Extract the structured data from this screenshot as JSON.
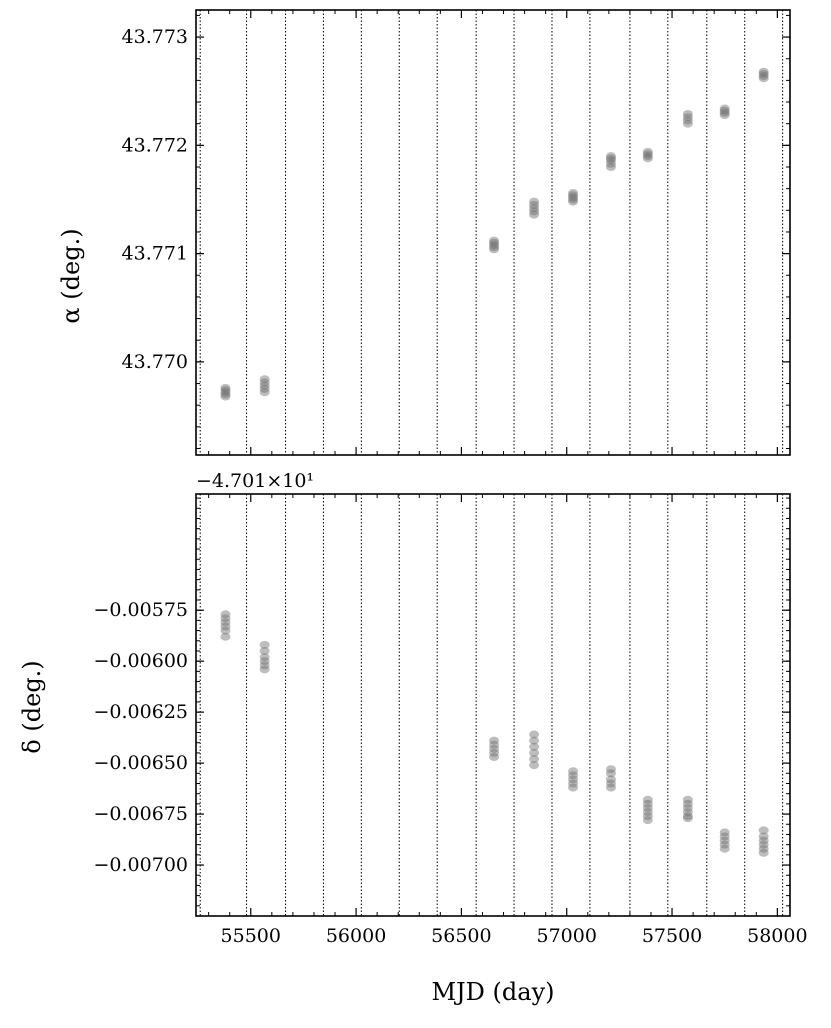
{
  "chart_data": [
    {
      "type": "scatter",
      "title": "",
      "xlabel": "",
      "ylabel": "α (deg.)",
      "ylabel_symbol": "α",
      "ylabel_unit": "(deg.)",
      "xlim": [
        55240,
        58060
      ],
      "ylim": [
        43.76914,
        43.77325
      ],
      "yticks": [
        43.77,
        43.771,
        43.772,
        43.773
      ],
      "ytick_labels": [
        "43.770",
        "43.771",
        "43.772",
        "43.773"
      ],
      "offset_text": "−4.701×10¹",
      "vlines": [
        55260,
        55480,
        55665,
        55845,
        56025,
        56205,
        56385,
        56570,
        56750,
        56930,
        57110,
        57300,
        57480,
        57665,
        57845,
        58025
      ],
      "clusters": [
        {
          "x": 55380,
          "y": [
            43.76968,
            43.7697,
            43.76972,
            43.76974,
            43.76976
          ]
        },
        {
          "x": 55566,
          "y": [
            43.76972,
            43.76975,
            43.76978,
            43.76981,
            43.76984
          ]
        },
        {
          "x": 56655,
          "y": [
            43.77104,
            43.77106,
            43.77108,
            43.7711,
            43.77112
          ]
        },
        {
          "x": 56845,
          "y": [
            43.77136,
            43.77139,
            43.77142,
            43.77145,
            43.77148
          ]
        },
        {
          "x": 57030,
          "y": [
            43.77148,
            43.7715,
            43.77152,
            43.77154,
            43.77156
          ]
        },
        {
          "x": 57210,
          "y": [
            43.7718,
            43.77183,
            43.77186,
            43.77188,
            43.7719
          ]
        },
        {
          "x": 57385,
          "y": [
            43.77188,
            43.7719,
            43.77192,
            43.77194
          ]
        },
        {
          "x": 57575,
          "y": [
            43.7722,
            43.77223,
            43.77226,
            43.77229
          ]
        },
        {
          "x": 57750,
          "y": [
            43.77228,
            43.7723,
            43.77232,
            43.77234
          ]
        },
        {
          "x": 57935,
          "y": [
            43.77262,
            43.77264,
            43.77266,
            43.77268
          ]
        }
      ]
    },
    {
      "type": "scatter",
      "title": "",
      "xlabel": "MJD (day)",
      "ylabel": "δ (deg.)",
      "ylabel_symbol": "δ",
      "ylabel_unit": "(deg.)",
      "xlim": [
        55240,
        58060
      ],
      "ylim": [
        -0.00725,
        -0.00518
      ],
      "xticks": [
        55500,
        56000,
        56500,
        57000,
        57500,
        58000
      ],
      "xtick_labels": [
        "55500",
        "56000",
        "56500",
        "57000",
        "57500",
        "58000"
      ],
      "yticks": [
        -0.00575,
        -0.006,
        -0.00625,
        -0.0065,
        -0.00675,
        -0.007
      ],
      "ytick_labels": [
        "−0.00575",
        "−0.00600",
        "−0.00625",
        "−0.00650",
        "−0.00675",
        "−0.00700"
      ],
      "vlines": [
        55260,
        55480,
        55665,
        55845,
        56025,
        56205,
        56385,
        56570,
        56750,
        56930,
        57110,
        57300,
        57480,
        57665,
        57845,
        58025
      ],
      "clusters": [
        {
          "x": 55380,
          "y": [
            -0.00577,
            -0.00579,
            -0.00581,
            -0.00583,
            -0.00585,
            -0.00588
          ]
        },
        {
          "x": 55566,
          "y": [
            -0.00592,
            -0.00595,
            -0.00598,
            -0.006,
            -0.00602,
            -0.00604
          ]
        },
        {
          "x": 56655,
          "y": [
            -0.00639,
            -0.00641,
            -0.00643,
            -0.00645,
            -0.00647
          ]
        },
        {
          "x": 56845,
          "y": [
            -0.00636,
            -0.00639,
            -0.00642,
            -0.00645,
            -0.00648,
            -0.00651
          ]
        },
        {
          "x": 57030,
          "y": [
            -0.00654,
            -0.00656,
            -0.00658,
            -0.0066,
            -0.00662
          ]
        },
        {
          "x": 57210,
          "y": [
            -0.00653,
            -0.00655,
            -0.00658,
            -0.0066,
            -0.00662
          ]
        },
        {
          "x": 57385,
          "y": [
            -0.00668,
            -0.0067,
            -0.00672,
            -0.00674,
            -0.00676,
            -0.00678
          ]
        },
        {
          "x": 57575,
          "y": [
            -0.00668,
            -0.0067,
            -0.00672,
            -0.00674,
            -0.00676,
            -0.00677
          ]
        },
        {
          "x": 57750,
          "y": [
            -0.00684,
            -0.00686,
            -0.00688,
            -0.0069,
            -0.00692
          ]
        },
        {
          "x": 57935,
          "y": [
            -0.00683,
            -0.00686,
            -0.00688,
            -0.0069,
            -0.00692,
            -0.00694
          ]
        }
      ]
    }
  ]
}
